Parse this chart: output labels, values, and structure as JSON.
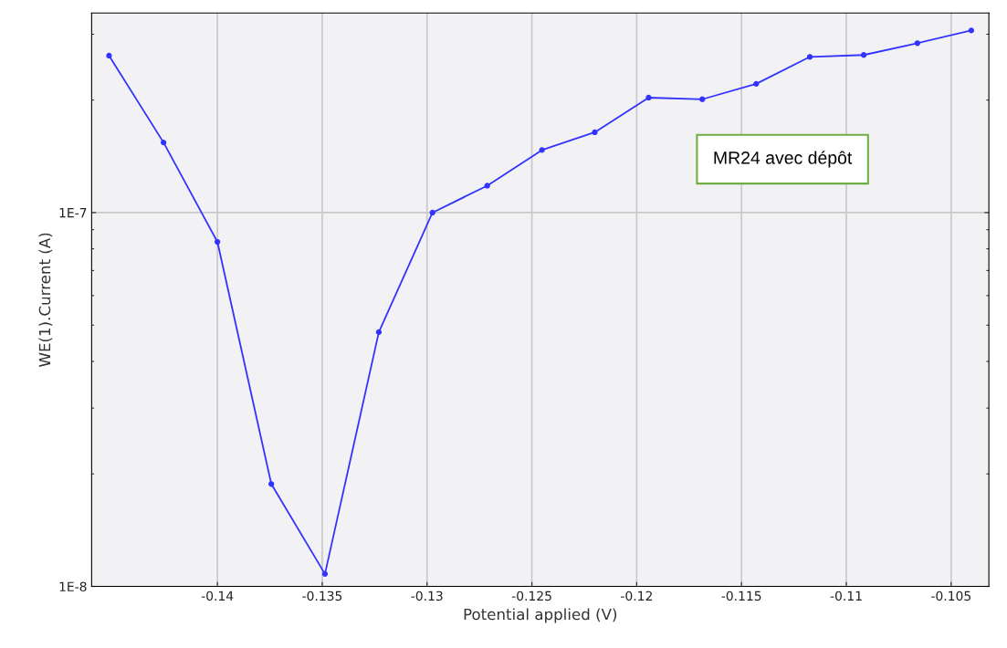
{
  "chart_data": {
    "type": "line",
    "xlabel": "Potential applied (V)",
    "ylabel": "WE(1).Current (A)",
    "x": [
      -0.14517,
      -0.14257,
      -0.14,
      -0.13743,
      -0.13487,
      -0.1323,
      -0.12974,
      -0.12713,
      -0.12452,
      -0.122,
      -0.11943,
      -0.11687,
      -0.1143,
      -0.11174,
      -0.10917,
      -0.10661,
      -0.10404
    ],
    "series": [
      {
        "color": "#3333ff",
        "values": [
          2.63e-07,
          1.54e-07,
          8.35e-08,
          1.88e-08,
          1.08e-08,
          4.79e-08,
          1e-07,
          1.18e-07,
          1.47e-07,
          1.64e-07,
          2.03e-07,
          2.01e-07,
          2.21e-07,
          2.61e-07,
          2.64e-07,
          2.84e-07,
          3.07e-07
        ]
      }
    ],
    "log": "y",
    "xlim": [
      -0.146,
      -0.1032
    ],
    "ylim": [
      1e-08,
      3.42e-07
    ],
    "xticks": [
      -0.14,
      -0.135,
      -0.13,
      -0.125,
      -0.12,
      -0.115,
      -0.11,
      -0.105
    ],
    "yticks": [
      {
        "value": 1e-08,
        "label": "1E-8"
      },
      {
        "value": 1e-07,
        "label": "1E-7"
      }
    ],
    "grid": true,
    "marker": "circle",
    "line_style": "solid",
    "annotations": [
      "MR24 avec dépôt"
    ]
  }
}
